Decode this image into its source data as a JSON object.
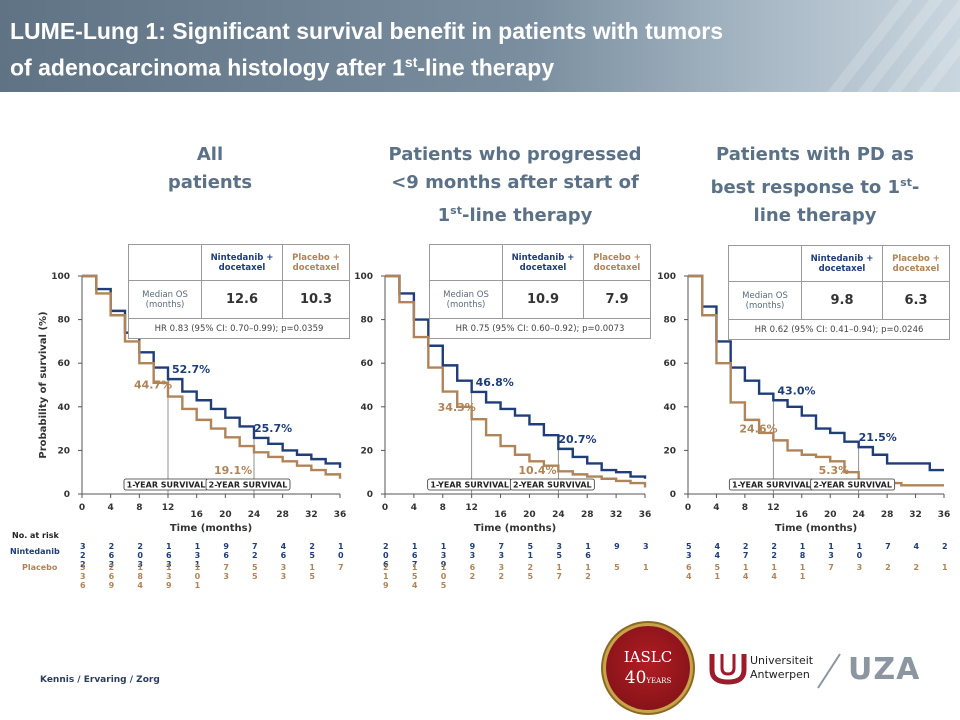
{
  "title": {
    "line1": "LUME-Lung 1: Significant survival benefit in patients with tumors",
    "line2_prefix": "of adenocarcinoma histology after 1",
    "line2_sup": "st",
    "line2_suffix": "-line therapy"
  },
  "panels": [
    {
      "title_lines": [
        "All",
        "patients"
      ]
    },
    {
      "title_lines": [
        "Patients who progressed",
        "<9 months after start of"
      ],
      "title_line3_prefix": "",
      "title_line3_sup": "st",
      "title_line3_suffix": "-line therapy",
      "title_line3_num": "1"
    },
    {
      "title_lines": [
        "Patients with PD as"
      ],
      "title_line2_prefix": "best response to 1",
      "title_line2_sup": "st",
      "title_line2_suffix": "-",
      "title_line3": "line therapy"
    }
  ],
  "tables": [
    {
      "col1": "Nintedanib +\ndocetaxel",
      "col2": "Placebo +\ndocetaxel",
      "row_label": "Median OS\n(months)",
      "v1": "12.6",
      "v2": "10.3",
      "hr": "HR 0.83 (95% CI: 0.70–0.99); p=0.0359"
    },
    {
      "col1": "Nintedanib +\ndocetaxel",
      "col2": "Placebo +\ndocetaxel",
      "row_label": "Median OS\n(months)",
      "v1": "10.9",
      "v2": "7.9",
      "hr": "HR 0.75 (95% CI: 0.60–0.92); p=0.0073"
    },
    {
      "col1": "Nintedanib +\ndocetaxel",
      "col2": "Placebo +\ndocetaxel",
      "row_label": "Median OS\n(months)",
      "v1": "9.8",
      "v2": "6.3",
      "hr": "HR 0.62 (95% CI: 0.41–0.94); p=0.0246"
    }
  ],
  "axis": {
    "ylabel": "Probability of survival (%)",
    "xlabel": "Time (months)",
    "yticks": [
      "0",
      "20",
      "40",
      "60",
      "80",
      "100"
    ],
    "xticks": [
      "0",
      "4",
      "8",
      "12",
      "16",
      "20",
      "24",
      "28",
      "32",
      "36"
    ]
  },
  "survival_labels": {
    "one_year": "1-YEAR SURVIVAL",
    "two_year": "2-YEAR SURVIVAL"
  },
  "at_risk": {
    "header": "No. at risk",
    "nintedanib": "Nintedanib",
    "placebo": "Placebo"
  },
  "colors": {
    "nintedanib": "#1f3d7a",
    "placebo": "#b08458",
    "header_bg": "#6d8193",
    "title_blue": "#5a7187"
  },
  "chart_data": [
    {
      "type": "line",
      "title": "",
      "xlabel": "Time (months)",
      "ylabel": "Probability of survival (%)",
      "xlim": [
        0,
        36
      ],
      "ylim": [
        0,
        100
      ],
      "series": [
        {
          "name": "Nintedanib + docetaxel",
          "x": [
            0,
            2,
            4,
            6,
            8,
            10,
            12,
            14,
            16,
            18,
            20,
            22,
            24,
            26,
            28,
            30,
            32,
            34,
            36
          ],
          "y": [
            100,
            94,
            84,
            74,
            65,
            58,
            52.7,
            47,
            43,
            39,
            35,
            31,
            25.7,
            23,
            20,
            18,
            16,
            14,
            12
          ]
        },
        {
          "name": "Placebo + docetaxel",
          "x": [
            0,
            2,
            4,
            6,
            8,
            10,
            12,
            14,
            16,
            18,
            20,
            22,
            24,
            26,
            28,
            30,
            32,
            34,
            36
          ],
          "y": [
            100,
            92,
            82,
            70,
            60,
            51,
            44.7,
            39,
            34,
            30,
            26,
            22,
            19.1,
            17,
            15,
            13,
            11,
            9,
            7
          ]
        }
      ],
      "annotations": [
        {
          "text": "52.7%",
          "x": 12,
          "y": 52.7,
          "series": "Nintedanib + docetaxel"
        },
        {
          "text": "44.7%",
          "x": 12,
          "y": 44.7,
          "series": "Placebo + docetaxel"
        },
        {
          "text": "25.7%",
          "x": 24,
          "y": 25.7,
          "series": "Nintedanib + docetaxel"
        },
        {
          "text": "19.1%",
          "x": 24,
          "y": 19.1,
          "series": "Placebo + docetaxel"
        }
      ],
      "at_risk": {
        "x": [
          0,
          4,
          8,
          12,
          16,
          20,
          24,
          28,
          32,
          36
        ],
        "nintedanib": [
          "3\n2\n2",
          "2\n6\n3",
          "2\n0\n3",
          "1\n6\n3",
          "1\n3\n1",
          "9\n6",
          "7\n2",
          "4\n6",
          "2\n5",
          "1\n0"
        ],
        "placebo": [
          "3\n3\n6",
          "2\n6\n9",
          "1\n8\n4",
          "1\n3\n9",
          "1\n0\n1",
          "7\n3",
          "5\n5",
          "3\n3",
          "1\n5",
          "7"
        ]
      }
    },
    {
      "type": "line",
      "title": "",
      "xlabel": "Time (months)",
      "ylabel": "Probability of survival (%)",
      "xlim": [
        0,
        36
      ],
      "ylim": [
        0,
        100
      ],
      "series": [
        {
          "name": "Nintedanib + docetaxel",
          "x": [
            0,
            2,
            4,
            6,
            8,
            10,
            12,
            14,
            16,
            18,
            20,
            22,
            24,
            26,
            28,
            30,
            32,
            34,
            36
          ],
          "y": [
            100,
            92,
            80,
            68,
            59,
            52,
            46.8,
            42,
            39,
            36,
            32,
            27,
            20.7,
            17,
            14,
            11,
            10,
            8,
            7
          ]
        },
        {
          "name": "Placebo + docetaxel",
          "x": [
            0,
            2,
            4,
            6,
            8,
            10,
            12,
            14,
            16,
            18,
            20,
            22,
            24,
            26,
            28,
            30,
            32,
            34,
            36
          ],
          "y": [
            100,
            88,
            72,
            58,
            47,
            40,
            34.3,
            27,
            22,
            18,
            15,
            13,
            10.4,
            9,
            8,
            7,
            6,
            5,
            3
          ]
        }
      ],
      "annotations": [
        {
          "text": "46.8%",
          "x": 12,
          "y": 46.8,
          "series": "Nintedanib + docetaxel"
        },
        {
          "text": "34.3%",
          "x": 12,
          "y": 34.3,
          "series": "Placebo + docetaxel"
        },
        {
          "text": "20.7%",
          "x": 24,
          "y": 20.7,
          "series": "Nintedanib + docetaxel"
        },
        {
          "text": "10.4%",
          "x": 24,
          "y": 10.4,
          "series": "Placebo + docetaxel"
        }
      ],
      "at_risk": {
        "x": [
          0,
          4,
          8,
          12,
          16,
          20,
          24,
          28,
          32,
          36
        ],
        "nintedanib": [
          "2\n0\n6",
          "1\n6\n7",
          "1\n3\n9",
          "9\n3",
          "7\n3",
          "5\n1",
          "3\n5",
          "1\n6",
          "9",
          "3"
        ],
        "placebo": [
          "2\n1\n9",
          "1\n5\n4",
          "1\n0\n5",
          "6\n2",
          "3\n2",
          "2\n5",
          "1\n7",
          "1\n2",
          "5",
          "1"
        ]
      }
    },
    {
      "type": "line",
      "title": "",
      "xlabel": "Time (months)",
      "ylabel": "Probability of survival (%)",
      "xlim": [
        0,
        36
      ],
      "ylim": [
        0,
        100
      ],
      "series": [
        {
          "name": "Nintedanib + docetaxel",
          "x": [
            0,
            2,
            4,
            6,
            8,
            10,
            12,
            14,
            16,
            18,
            20,
            22,
            24,
            26,
            28,
            30,
            32,
            34,
            36
          ],
          "y": [
            100,
            86,
            70,
            58,
            52,
            46,
            43,
            40,
            36,
            30,
            28,
            24,
            21.5,
            18,
            14,
            14,
            14,
            11,
            11
          ]
        },
        {
          "name": "Placebo + docetaxel",
          "x": [
            0,
            2,
            4,
            6,
            8,
            10,
            12,
            14,
            16,
            18,
            20,
            22,
            24,
            26,
            28,
            30,
            32,
            34,
            36
          ],
          "y": [
            100,
            82,
            60,
            42,
            34,
            28,
            24.6,
            20,
            18,
            17,
            15,
            10,
            5.3,
            5,
            5,
            4,
            4,
            4,
            4
          ]
        }
      ],
      "annotations": [
        {
          "text": "43.0%",
          "x": 12,
          "y": 43.0,
          "series": "Nintedanib + docetaxel"
        },
        {
          "text": "24.6%",
          "x": 12,
          "y": 24.6,
          "series": "Placebo + docetaxel"
        },
        {
          "text": "21.5%",
          "x": 24,
          "y": 21.5,
          "series": "Nintedanib + docetaxel"
        },
        {
          "text": "5.3%",
          "x": 24,
          "y": 5.3,
          "series": "Placebo + docetaxel"
        }
      ],
      "at_risk": {
        "x": [
          0,
          4,
          8,
          12,
          16,
          20,
          24,
          28,
          32,
          36
        ],
        "nintedanib": [
          "5\n3",
          "4\n4",
          "2\n7",
          "2\n2",
          "1\n8",
          "1\n3",
          "1\n0",
          "7",
          "4",
          "2"
        ],
        "placebo": [
          "6\n4",
          "5\n1",
          "1\n4",
          "1\n4",
          "1\n1",
          "7",
          "3",
          "2",
          "2",
          "1"
        ]
      }
    }
  ],
  "footer": {
    "text": "Kennis / Ervaring / Zorg",
    "iaslc": "IASLC",
    "iaslc_num": "40",
    "iaslc_years": "YEARS",
    "university": "Universiteit\nAntwerpen",
    "uza": "UZA"
  }
}
